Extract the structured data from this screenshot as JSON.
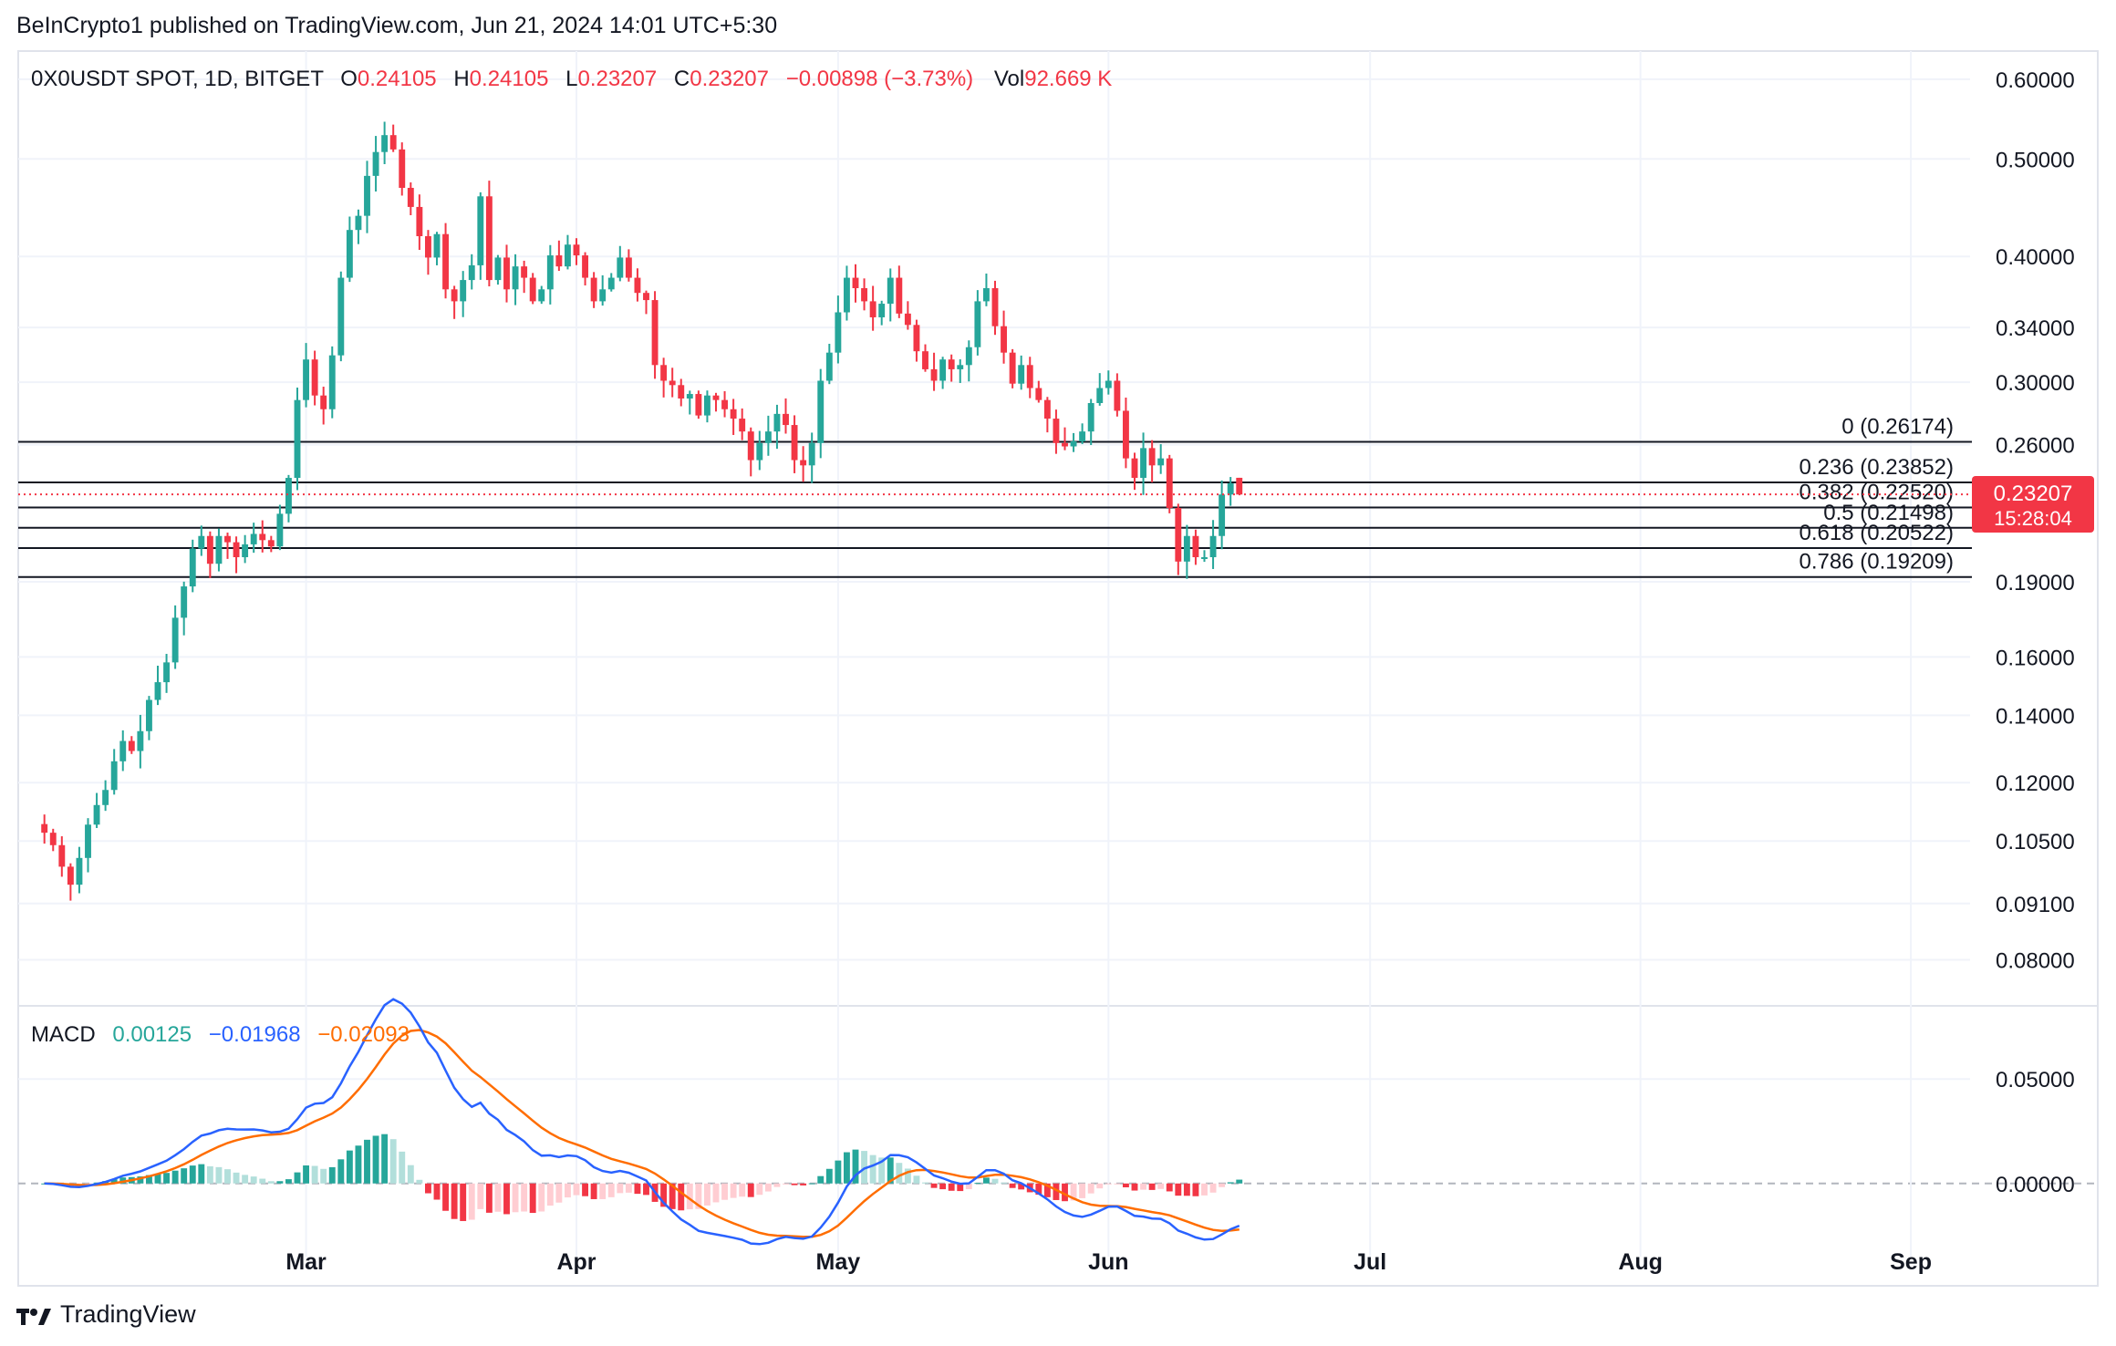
{
  "header": {
    "publisher_line": "BeInCrypto1 published on TradingView.com, Jun 21, 2024 14:01 UTC+5:30"
  },
  "legend": {
    "symbol": "0X0USDT SPOT, 1D, BITGET",
    "o_label": "O",
    "o_value": "0.24105",
    "h_label": "H",
    "h_value": "0.24105",
    "l_label": "L",
    "l_value": "0.23207",
    "c_label": "C",
    "c_value": "0.23207",
    "change": "−0.00898 (−3.73%)",
    "vol_label": "Vol",
    "vol_value": "92.669 K"
  },
  "price_badge": {
    "value": "0.23207",
    "countdown": "15:28:04",
    "color": "#f23645"
  },
  "macd_legend": {
    "label": "MACD",
    "hist": "0.00125",
    "macd": "−0.01968",
    "signal": "−0.02093"
  },
  "brand": {
    "name": "TradingView"
  },
  "colors": {
    "up": "#26a69a",
    "down": "#f23645",
    "up_light": "#b2dfdb",
    "down_light": "#ffcdd2",
    "macd": "#2962ff",
    "signal": "#ff6d00",
    "grid": "#f0f3fa"
  },
  "chart_data": [
    {
      "type": "candlestick",
      "scale": "log",
      "ylim": [
        0.072,
        0.64
      ],
      "y_ticks": [
        "0.60000",
        "0.50000",
        "0.40000",
        "0.34000",
        "0.30000",
        "0.26000",
        "0.19000",
        "0.16000",
        "0.14000",
        "0.12000",
        "0.10500",
        "0.09100",
        "0.08000"
      ],
      "y_tick_values": [
        0.6,
        0.5,
        0.4,
        0.34,
        0.3,
        0.26,
        0.19,
        0.16,
        0.14,
        0.12,
        0.105,
        0.091,
        0.08
      ],
      "x_ticks": [
        {
          "label": "Mar",
          "date": "2024-03-01"
        },
        {
          "label": "Apr",
          "date": "2024-04-01"
        },
        {
          "label": "May",
          "date": "2024-05-01"
        },
        {
          "label": "Jun",
          "date": "2024-06-01"
        },
        {
          "label": "Jul",
          "date": "2024-07-01"
        },
        {
          "label": "Aug",
          "date": "2024-08-01"
        },
        {
          "label": "Sep",
          "date": "2024-09-01"
        }
      ],
      "x_range": [
        "2024-01-28",
        "2024-09-08"
      ],
      "candles_start_date": "2024-01-31",
      "candles_close": [
        0.107,
        0.104,
        0.099,
        0.095,
        0.101,
        0.109,
        0.114,
        0.118,
        0.126,
        0.132,
        0.129,
        0.135,
        0.145,
        0.151,
        0.158,
        0.175,
        0.188,
        0.205,
        0.211,
        0.198,
        0.211,
        0.208,
        0.201,
        0.207,
        0.212,
        0.209,
        0.206,
        0.222,
        0.241,
        0.288,
        0.316,
        0.291,
        0.282,
        0.319,
        0.381,
        0.425,
        0.439,
        0.481,
        0.508,
        0.528,
        0.511,
        0.468,
        0.448,
        0.419,
        0.399,
        0.421,
        0.371,
        0.361,
        0.379,
        0.392,
        0.459,
        0.379,
        0.399,
        0.371,
        0.391,
        0.381,
        0.361,
        0.371,
        0.401,
        0.391,
        0.411,
        0.401,
        0.381,
        0.361,
        0.371,
        0.381,
        0.399,
        0.381,
        0.368,
        0.362,
        0.312,
        0.301,
        0.298,
        0.289,
        0.292,
        0.278,
        0.291,
        0.288,
        0.282,
        0.276,
        0.268,
        0.251,
        0.261,
        0.268,
        0.279,
        0.272,
        0.251,
        0.248,
        0.261,
        0.301,
        0.321,
        0.352,
        0.381,
        0.372,
        0.361,
        0.348,
        0.359,
        0.381,
        0.351,
        0.342,
        0.322,
        0.309,
        0.301,
        0.316,
        0.309,
        0.312,
        0.325,
        0.361,
        0.372,
        0.341,
        0.321,
        0.299,
        0.312,
        0.296,
        0.288,
        0.276,
        0.261,
        0.259,
        0.262,
        0.268,
        0.286,
        0.296,
        0.301,
        0.281,
        0.252,
        0.241,
        0.258,
        0.248,
        0.252,
        0.225,
        0.199,
        0.211,
        0.201,
        0.201,
        0.211,
        0.232,
        0.238,
        0.232
      ],
      "ohlc_last": {
        "open": 0.24105,
        "high": 0.24105,
        "low": 0.23207,
        "close": 0.23207,
        "volume": "92.669 K"
      },
      "fibonacci": [
        {
          "ratio": "0",
          "price": "0.26174",
          "label": "0 (0.26174)"
        },
        {
          "ratio": "0.236",
          "price": "0.23852",
          "label": "0.236 (0.23852)"
        },
        {
          "ratio": "0.382",
          "price": "0.22520",
          "label": "0.382 (0.22520)"
        },
        {
          "ratio": "0.5",
          "price": "0.21498",
          "label": "0.5 (0.21498)"
        },
        {
          "ratio": "0.618",
          "price": "0.20522",
          "label": "0.618 (0.20522)"
        },
        {
          "ratio": "0.786",
          "price": "0.19209",
          "label": "0.786 (0.19209)"
        }
      ]
    },
    {
      "type": "macd",
      "ylim": [
        -0.035,
        0.085
      ],
      "y_ticks": [
        "0.05000",
        "0.00000"
      ],
      "y_tick_values": [
        0.05,
        0.0
      ],
      "fast": 12,
      "slow": 26,
      "signal": 9,
      "last": {
        "histogram": 0.00125,
        "macd": -0.01968,
        "signal": -0.02093
      }
    }
  ]
}
